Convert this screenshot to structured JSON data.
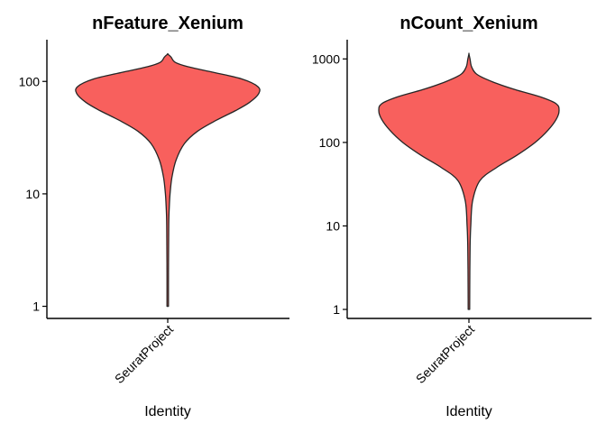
{
  "chart_data": [
    {
      "type": "violin",
      "title": "nFeature_Xenium",
      "xlabel": "Identity",
      "ylabel": "",
      "yscale": "log10",
      "ylim": [
        0.78,
        235
      ],
      "yticks": [
        1,
        10,
        100
      ],
      "ytick_labels": [
        "1",
        "10",
        "100"
      ],
      "categories": [
        "SeuratProject"
      ],
      "fill_color": "#F8605D",
      "grid": false,
      "legend": "none",
      "density": [
        {
          "y": 1,
          "w": 0.008
        },
        {
          "y": 2,
          "w": 0.008
        },
        {
          "y": 4,
          "w": 0.01
        },
        {
          "y": 6,
          "w": 0.012
        },
        {
          "y": 8,
          "w": 0.018
        },
        {
          "y": 10,
          "w": 0.025
        },
        {
          "y": 14,
          "w": 0.045
        },
        {
          "y": 20,
          "w": 0.09
        },
        {
          "y": 28,
          "w": 0.18
        },
        {
          "y": 36,
          "w": 0.32
        },
        {
          "y": 45,
          "w": 0.52
        },
        {
          "y": 55,
          "w": 0.73
        },
        {
          "y": 65,
          "w": 0.88
        },
        {
          "y": 78,
          "w": 0.98
        },
        {
          "y": 90,
          "w": 0.97
        },
        {
          "y": 105,
          "w": 0.8
        },
        {
          "y": 120,
          "w": 0.5
        },
        {
          "y": 135,
          "w": 0.22
        },
        {
          "y": 148,
          "w": 0.08
        },
        {
          "y": 165,
          "w": 0.035
        },
        {
          "y": 175,
          "w": 0.0
        }
      ]
    },
    {
      "type": "violin",
      "title": "nCount_Xenium",
      "xlabel": "Identity",
      "ylabel": "",
      "yscale": "log10",
      "ylim": [
        0.78,
        1700
      ],
      "yticks": [
        1,
        10,
        100,
        1000
      ],
      "ytick_labels": [
        "1",
        "10",
        "100",
        "1000"
      ],
      "categories": [
        "SeuratProject"
      ],
      "fill_color": "#F8605D",
      "grid": false,
      "legend": "none",
      "density": [
        {
          "y": 1,
          "w": 0.008
        },
        {
          "y": 3,
          "w": 0.01
        },
        {
          "y": 6,
          "w": 0.013
        },
        {
          "y": 10,
          "w": 0.02
        },
        {
          "y": 20,
          "w": 0.04
        },
        {
          "y": 35,
          "w": 0.12
        },
        {
          "y": 50,
          "w": 0.3
        },
        {
          "y": 70,
          "w": 0.52
        },
        {
          "y": 100,
          "w": 0.72
        },
        {
          "y": 140,
          "w": 0.86
        },
        {
          "y": 190,
          "w": 0.95
        },
        {
          "y": 240,
          "w": 0.98
        },
        {
          "y": 290,
          "w": 0.95
        },
        {
          "y": 350,
          "w": 0.78
        },
        {
          "y": 430,
          "w": 0.5
        },
        {
          "y": 530,
          "w": 0.26
        },
        {
          "y": 650,
          "w": 0.09
        },
        {
          "y": 800,
          "w": 0.03
        },
        {
          "y": 1000,
          "w": 0.012
        },
        {
          "y": 1150,
          "w": 0.0
        }
      ]
    }
  ]
}
